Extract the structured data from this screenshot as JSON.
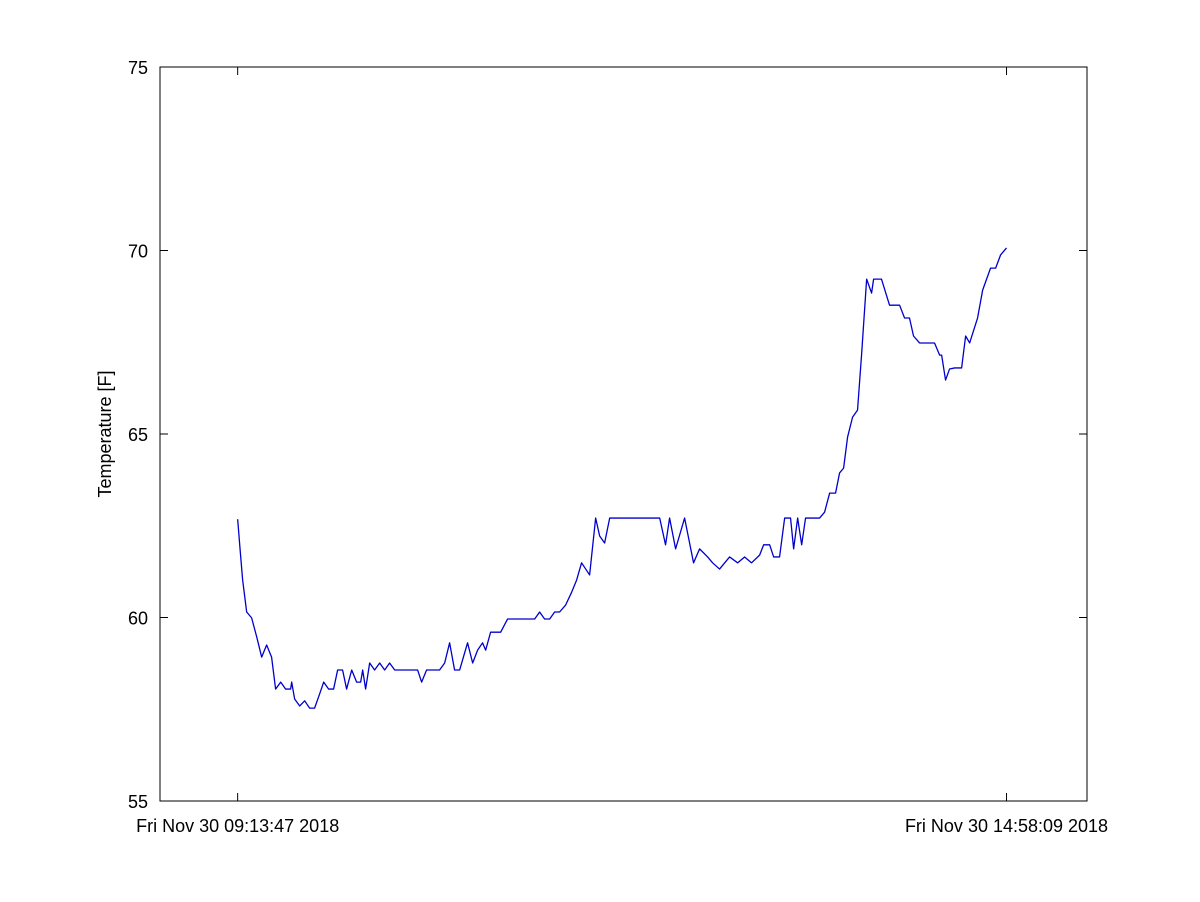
{
  "chart_data": {
    "type": "line",
    "ylabel": "Temperature [F]",
    "x": [
      9.2297,
      9.245,
      9.267,
      9.297,
      9.334,
      9.372,
      9.409,
      9.446,
      9.483,
      9.513,
      9.551,
      9.588,
      9.625,
      9.633,
      9.655,
      9.693,
      9.73,
      9.767,
      9.804,
      9.842,
      9.872,
      9.909,
      9.946,
      9.976,
      10.013,
      10.043,
      10.081,
      10.118,
      10.148,
      10.163,
      10.185,
      10.215,
      10.252,
      10.29,
      10.327,
      10.364,
      10.402,
      10.439,
      10.514,
      10.573,
      10.603,
      10.64,
      10.737,
      10.775,
      10.812,
      10.849,
      10.887,
      10.946,
      10.984,
      11.021,
      11.058,
      11.081,
      11.118,
      11.193,
      11.245,
      11.335,
      11.447,
      11.484,
      11.521,
      11.559,
      11.596,
      11.633,
      11.678,
      11.723,
      11.76,
      11.797,
      11.857,
      11.902,
      11.932,
      11.969,
      12.007,
      12.156,
      12.38,
      12.424,
      12.454,
      12.499,
      12.566,
      12.633,
      12.678,
      12.738,
      12.775,
      12.827,
      12.902,
      12.962,
      13.014,
      13.066,
      13.126,
      13.156,
      13.201,
      13.231,
      13.275,
      13.313,
      13.357,
      13.38,
      13.41,
      13.44,
      13.469,
      13.574,
      13.611,
      13.649,
      13.693,
      13.723,
      13.753,
      13.783,
      13.82,
      13.857,
      13.887,
      13.925,
      13.962,
      13.977,
      14.036,
      14.096,
      14.171,
      14.208,
      14.245,
      14.275,
      14.32,
      14.432,
      14.47,
      14.485,
      14.514,
      14.544,
      14.582,
      14.634,
      14.664,
      14.694,
      14.753,
      14.791,
      14.85,
      14.888,
      14.925,
      14.9692
    ],
    "series": [
      {
        "color": "#0000cc",
        "values": [
          62.68,
          61.98,
          61.02,
          60.15,
          59.99,
          59.47,
          58.92,
          59.25,
          58.92,
          58.05,
          58.24,
          58.05,
          58.05,
          58.24,
          57.78,
          57.59,
          57.73,
          57.53,
          57.53,
          57.92,
          58.24,
          58.05,
          58.05,
          58.57,
          58.57,
          58.05,
          58.57,
          58.24,
          58.24,
          58.57,
          58.05,
          58.76,
          58.57,
          58.76,
          58.57,
          58.76,
          58.57,
          58.57,
          58.57,
          58.57,
          58.24,
          58.57,
          58.57,
          58.76,
          59.31,
          58.57,
          58.57,
          59.31,
          58.76,
          59.11,
          59.31,
          59.11,
          59.6,
          59.6,
          59.96,
          59.96,
          59.96,
          60.15,
          59.96,
          59.96,
          60.15,
          60.15,
          60.34,
          60.69,
          61.02,
          61.49,
          61.16,
          62.71,
          62.22,
          62.03,
          62.71,
          62.71,
          62.71,
          61.98,
          62.71,
          61.87,
          62.71,
          61.49,
          61.87,
          61.65,
          61.49,
          61.32,
          61.65,
          61.49,
          61.65,
          61.49,
          61.7,
          61.98,
          61.98,
          61.65,
          61.65,
          62.71,
          62.71,
          61.87,
          62.71,
          61.98,
          62.71,
          62.71,
          62.87,
          63.39,
          63.39,
          63.94,
          64.07,
          64.92,
          65.46,
          65.65,
          67.15,
          69.22,
          68.84,
          69.22,
          69.22,
          68.51,
          68.51,
          68.16,
          68.16,
          67.67,
          67.48,
          67.48,
          67.15,
          67.15,
          66.47,
          66.77,
          66.8,
          66.8,
          67.67,
          67.48,
          68.16,
          68.92,
          69.52,
          69.52,
          69.88,
          70.07
        ]
      }
    ],
    "xlim": [
      8.65,
      15.57
    ],
    "xticks": [
      {
        "value": 9.2297,
        "label": "Fri Nov 30 09:13:47 2018"
      },
      {
        "value": 14.9692,
        "label": "Fri Nov 30 14:58:09 2018"
      }
    ],
    "ylim": [
      55,
      75
    ],
    "yticks": [
      55,
      60,
      65,
      70,
      75
    ]
  }
}
